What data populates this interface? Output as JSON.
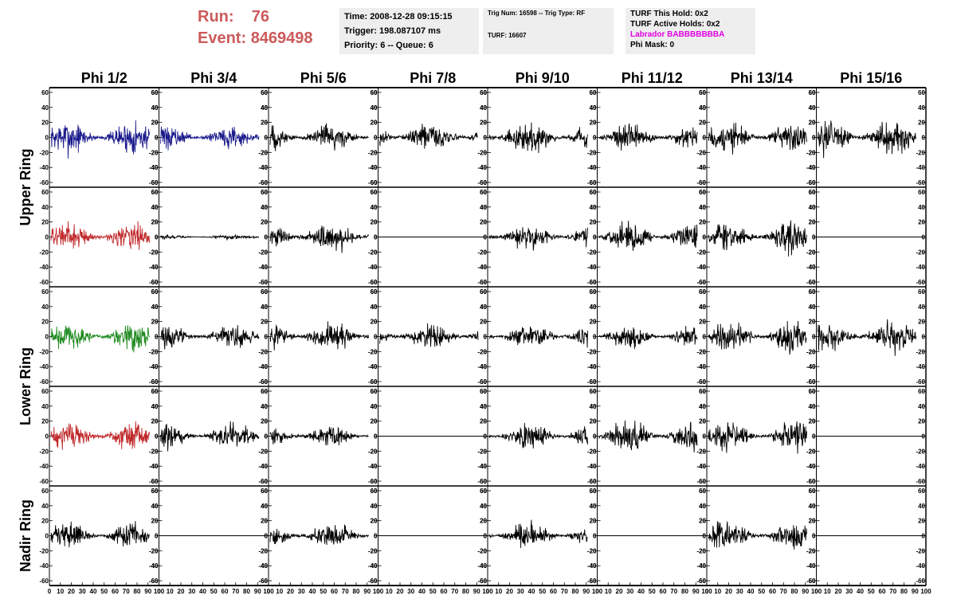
{
  "header": {
    "run_label": "Run:",
    "run_value": "76",
    "event_label": "Event:",
    "event_value": "8469498",
    "time": "Time: 2008-12-28 09:15:15",
    "trigger": "Trigger: 198.087107 ms",
    "priority": "Priority: 6 -- Queue: 6",
    "trig_num": "Trig Num: 16598 -- Trig Type: RF",
    "turf": "TURF: 16607",
    "turf_hold": "TURF This Hold: 0x2",
    "turf_active": "TURF Active Holds: 0x2",
    "labrador": "Labrador BABBBBBBBA",
    "phi_mask": "Phi Mask: 0"
  },
  "columns": [
    "Phi 1/2",
    "Phi 3/4",
    "Phi 5/6",
    "Phi 7/8",
    "Phi 9/10",
    "Phi 11/12",
    "Phi 13/14",
    "Phi 15/16"
  ],
  "rows": [
    "Upper Ring",
    "Lower Ring",
    "Nadir Ring"
  ],
  "colors": {
    "blue": "#1a1a8c",
    "red": "#c0282a",
    "green": "#1f8a1f",
    "black": "#000000",
    "run_text": "#cc5a5a",
    "labrador": "#e000e0"
  },
  "chart_data": {
    "type": "line",
    "x_range": [
      0,
      100
    ],
    "y_range": [
      -60,
      60
    ],
    "y_ticks": [
      "60",
      "40",
      "20",
      "0",
      "-20",
      "-40",
      "-60"
    ],
    "x_ticks": [
      "0",
      "10",
      "20",
      "30",
      "40",
      "50",
      "60",
      "70",
      "80",
      "90",
      "100"
    ],
    "grid": false,
    "panels": [
      {
        "row": 0,
        "col": 0,
        "color": "blue",
        "amplitude": 22,
        "flat": false
      },
      {
        "row": 0,
        "col": 1,
        "color": "blue",
        "amplitude": 14,
        "flat": false
      },
      {
        "row": 0,
        "col": 2,
        "color": "black",
        "amplitude": 18,
        "flat": false
      },
      {
        "row": 0,
        "col": 3,
        "color": "black",
        "amplitude": 18,
        "flat": false
      },
      {
        "row": 0,
        "col": 4,
        "color": "black",
        "amplitude": 20,
        "flat": false
      },
      {
        "row": 0,
        "col": 5,
        "color": "black",
        "amplitude": 18,
        "flat": false
      },
      {
        "row": 0,
        "col": 6,
        "color": "black",
        "amplitude": 20,
        "flat": false
      },
      {
        "row": 0,
        "col": 7,
        "color": "black",
        "amplitude": 22,
        "flat": false
      },
      {
        "row": 1,
        "col": 0,
        "color": "red",
        "amplitude": 18,
        "flat": false
      },
      {
        "row": 1,
        "col": 1,
        "color": "black",
        "amplitude": 3,
        "flat": false
      },
      {
        "row": 1,
        "col": 2,
        "color": "black",
        "amplitude": 20,
        "flat": false
      },
      {
        "row": 1,
        "col": 3,
        "color": "black",
        "amplitude": 0,
        "flat": true
      },
      {
        "row": 1,
        "col": 4,
        "color": "black",
        "amplitude": 16,
        "flat": false
      },
      {
        "row": 1,
        "col": 5,
        "color": "black",
        "amplitude": 18,
        "flat": false
      },
      {
        "row": 1,
        "col": 6,
        "color": "black",
        "amplitude": 20,
        "flat": false
      },
      {
        "row": 1,
        "col": 7,
        "color": "black",
        "amplitude": 0,
        "flat": true
      },
      {
        "row": 2,
        "col": 0,
        "color": "green",
        "amplitude": 18,
        "flat": false
      },
      {
        "row": 2,
        "col": 1,
        "color": "black",
        "amplitude": 14,
        "flat": false
      },
      {
        "row": 2,
        "col": 2,
        "color": "black",
        "amplitude": 18,
        "flat": false
      },
      {
        "row": 2,
        "col": 3,
        "color": "black",
        "amplitude": 16,
        "flat": false
      },
      {
        "row": 2,
        "col": 4,
        "color": "black",
        "amplitude": 16,
        "flat": false
      },
      {
        "row": 2,
        "col": 5,
        "color": "black",
        "amplitude": 14,
        "flat": false
      },
      {
        "row": 2,
        "col": 6,
        "color": "black",
        "amplitude": 20,
        "flat": false
      },
      {
        "row": 2,
        "col": 7,
        "color": "black",
        "amplitude": 20,
        "flat": false
      },
      {
        "row": 3,
        "col": 0,
        "color": "red",
        "amplitude": 18,
        "flat": false
      },
      {
        "row": 3,
        "col": 1,
        "color": "black",
        "amplitude": 16,
        "flat": false
      },
      {
        "row": 3,
        "col": 2,
        "color": "black",
        "amplitude": 14,
        "flat": false
      },
      {
        "row": 3,
        "col": 3,
        "color": "black",
        "amplitude": 0,
        "flat": true
      },
      {
        "row": 3,
        "col": 4,
        "color": "black",
        "amplitude": 16,
        "flat": false
      },
      {
        "row": 3,
        "col": 5,
        "color": "black",
        "amplitude": 20,
        "flat": false
      },
      {
        "row": 3,
        "col": 6,
        "color": "black",
        "amplitude": 18,
        "flat": false
      },
      {
        "row": 3,
        "col": 7,
        "color": "black",
        "amplitude": 0,
        "flat": true
      },
      {
        "row": 4,
        "col": 0,
        "color": "black",
        "amplitude": 16,
        "flat": false
      },
      {
        "row": 4,
        "col": 1,
        "color": "black",
        "amplitude": 0,
        "flat": true
      },
      {
        "row": 4,
        "col": 2,
        "color": "black",
        "amplitude": 16,
        "flat": false
      },
      {
        "row": 4,
        "col": 3,
        "color": "black",
        "amplitude": 0,
        "flat": true
      },
      {
        "row": 4,
        "col": 4,
        "color": "black",
        "amplitude": 16,
        "flat": false
      },
      {
        "row": 4,
        "col": 5,
        "color": "black",
        "amplitude": 0,
        "flat": true
      },
      {
        "row": 4,
        "col": 6,
        "color": "black",
        "amplitude": 18,
        "flat": false
      },
      {
        "row": 4,
        "col": 7,
        "color": "black",
        "amplitude": 0,
        "flat": true
      }
    ]
  }
}
